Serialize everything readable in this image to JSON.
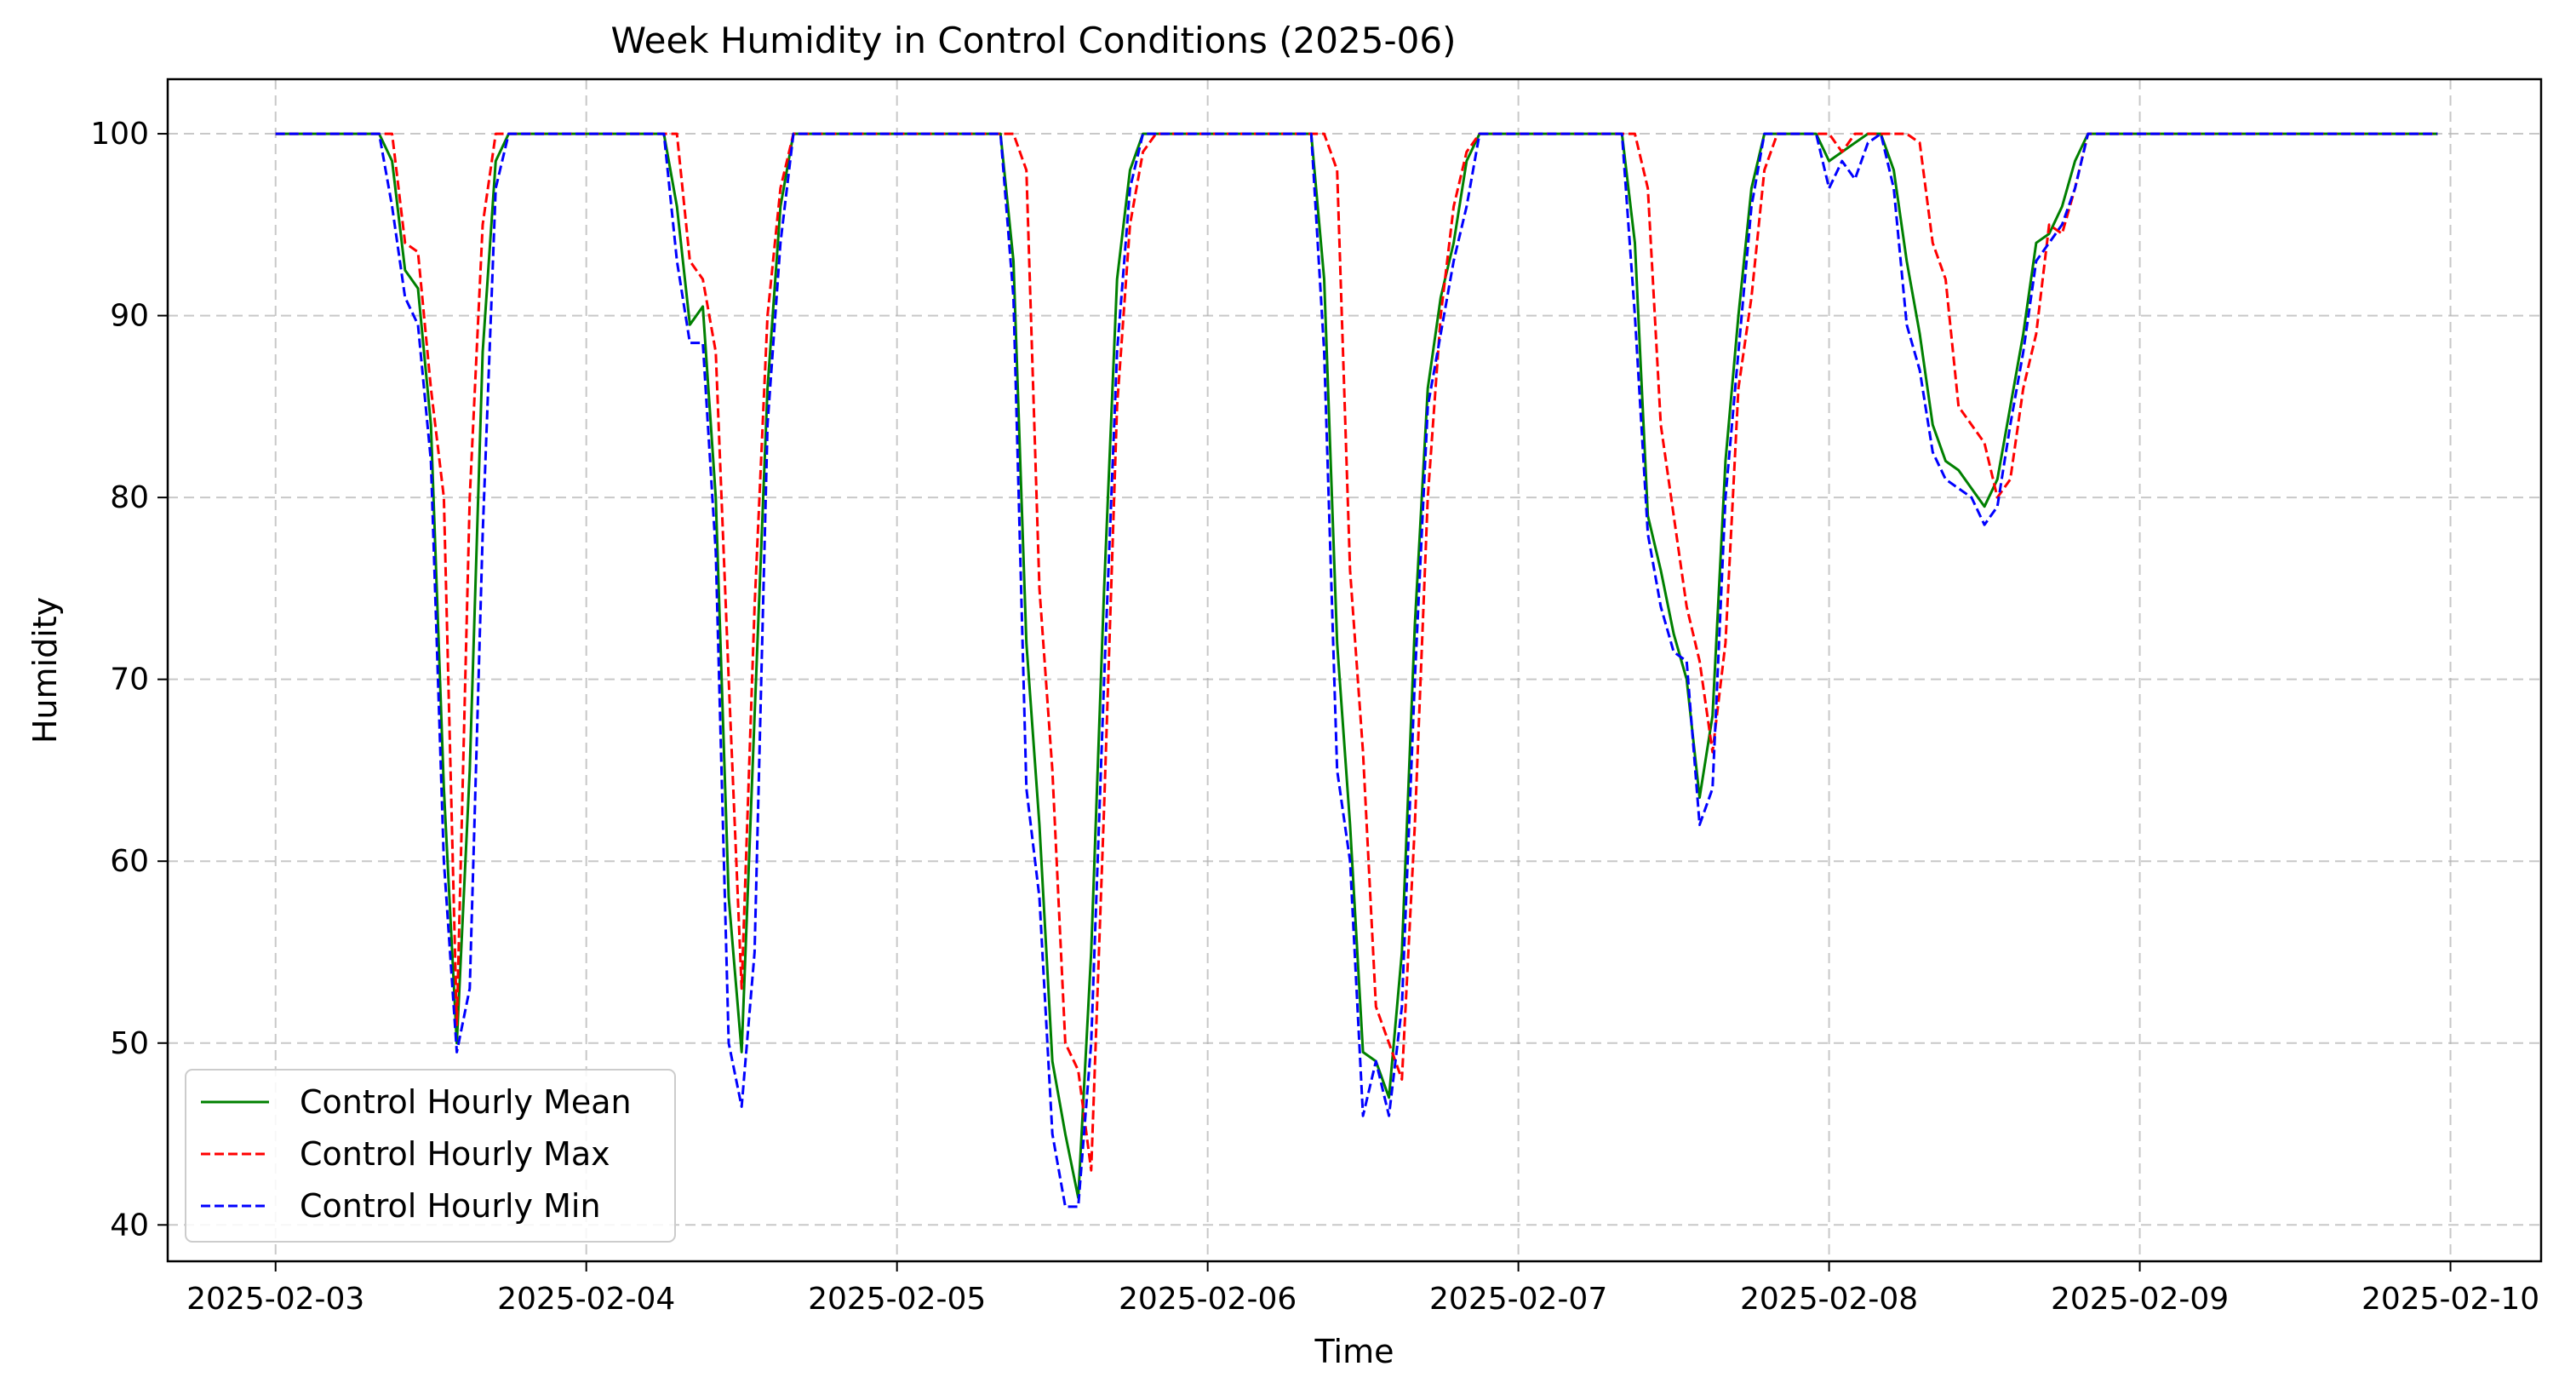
{
  "chart_data": {
    "type": "line",
    "title": "Week Humidity in Control Conditions (2025-06)",
    "xlabel": "Time",
    "ylabel": "Humidity",
    "xlim": [
      "2025-02-02 15:40",
      "2025-02-10 07:00"
    ],
    "ylim": [
      38,
      103
    ],
    "x_ticks": [
      "2025-02-03",
      "2025-02-04",
      "2025-02-05",
      "2025-02-06",
      "2025-02-07",
      "2025-02-08",
      "2025-02-09",
      "2025-02-10"
    ],
    "y_ticks": [
      40,
      50,
      60,
      70,
      80,
      90,
      100
    ],
    "grid": true,
    "legend_position": "lower left",
    "series": [
      {
        "name": "Control Hourly Mean",
        "color": "#008000",
        "style": "solid",
        "points": [
          [
            "2025-02-03 00:00",
            100
          ],
          [
            "2025-02-03 08:00",
            100
          ],
          [
            "2025-02-03 09:00",
            98.5
          ],
          [
            "2025-02-03 10:00",
            92.5
          ],
          [
            "2025-02-03 11:00",
            91.5
          ],
          [
            "2025-02-03 12:00",
            84
          ],
          [
            "2025-02-03 13:00",
            64
          ],
          [
            "2025-02-03 14:00",
            50
          ],
          [
            "2025-02-03 15:00",
            65
          ],
          [
            "2025-02-03 16:00",
            88
          ],
          [
            "2025-02-03 17:00",
            98.5
          ],
          [
            "2025-02-03 18:00",
            100
          ],
          [
            "2025-02-04 06:00",
            100
          ],
          [
            "2025-02-04 07:00",
            96
          ],
          [
            "2025-02-04 08:00",
            89.5
          ],
          [
            "2025-02-04 09:00",
            90.5
          ],
          [
            "2025-02-04 10:00",
            80
          ],
          [
            "2025-02-04 11:00",
            58
          ],
          [
            "2025-02-04 12:00",
            49.5
          ],
          [
            "2025-02-04 13:00",
            68
          ],
          [
            "2025-02-04 14:00",
            86
          ],
          [
            "2025-02-04 15:00",
            96
          ],
          [
            "2025-02-04 16:00",
            100
          ],
          [
            "2025-02-05 08:00",
            100
          ],
          [
            "2025-02-05 09:00",
            93
          ],
          [
            "2025-02-05 10:00",
            72
          ],
          [
            "2025-02-05 11:00",
            62
          ],
          [
            "2025-02-05 12:00",
            49
          ],
          [
            "2025-02-05 13:00",
            45
          ],
          [
            "2025-02-05 14:00",
            41.5
          ],
          [
            "2025-02-05 15:00",
            55
          ],
          [
            "2025-02-05 16:00",
            75
          ],
          [
            "2025-02-05 17:00",
            92
          ],
          [
            "2025-02-05 18:00",
            98
          ],
          [
            "2025-02-05 19:00",
            100
          ],
          [
            "2025-02-06 08:00",
            100
          ],
          [
            "2025-02-06 09:00",
            92
          ],
          [
            "2025-02-06 10:00",
            72
          ],
          [
            "2025-02-06 11:00",
            62
          ],
          [
            "2025-02-06 12:00",
            49.5
          ],
          [
            "2025-02-06 13:00",
            49
          ],
          [
            "2025-02-06 14:00",
            47
          ],
          [
            "2025-02-06 15:00",
            55
          ],
          [
            "2025-02-06 16:00",
            73
          ],
          [
            "2025-02-06 17:00",
            86
          ],
          [
            "2025-02-06 18:00",
            91
          ],
          [
            "2025-02-06 19:00",
            94
          ],
          [
            "2025-02-06 20:00",
            98.5
          ],
          [
            "2025-02-06 21:00",
            100
          ],
          [
            "2025-02-07 08:00",
            100
          ],
          [
            "2025-02-07 09:00",
            94
          ],
          [
            "2025-02-07 10:00",
            79
          ],
          [
            "2025-02-07 11:00",
            76
          ],
          [
            "2025-02-07 12:00",
            72.5
          ],
          [
            "2025-02-07 13:00",
            70
          ],
          [
            "2025-02-07 14:00",
            63.5
          ],
          [
            "2025-02-07 15:00",
            68
          ],
          [
            "2025-02-07 16:00",
            82
          ],
          [
            "2025-02-07 17:00",
            90
          ],
          [
            "2025-02-07 18:00",
            97
          ],
          [
            "2025-02-07 19:00",
            100
          ],
          [
            "2025-02-07 23:00",
            100
          ],
          [
            "2025-02-08 00:00",
            98.5
          ],
          [
            "2025-02-08 01:00",
            99
          ],
          [
            "2025-02-08 02:00",
            99.5
          ],
          [
            "2025-02-08 03:00",
            100
          ],
          [
            "2025-02-08 04:00",
            100
          ],
          [
            "2025-02-08 05:00",
            98
          ],
          [
            "2025-02-08 06:00",
            93
          ],
          [
            "2025-02-08 07:00",
            89
          ],
          [
            "2025-02-08 08:00",
            84
          ],
          [
            "2025-02-08 09:00",
            82
          ],
          [
            "2025-02-08 10:00",
            81.5
          ],
          [
            "2025-02-08 11:00",
            80.5
          ],
          [
            "2025-02-08 12:00",
            79.5
          ],
          [
            "2025-02-08 13:00",
            81
          ],
          [
            "2025-02-08 14:00",
            85
          ],
          [
            "2025-02-08 15:00",
            89
          ],
          [
            "2025-02-08 16:00",
            94
          ],
          [
            "2025-02-08 17:00",
            94.5
          ],
          [
            "2025-02-08 18:00",
            96
          ],
          [
            "2025-02-08 19:00",
            98.5
          ],
          [
            "2025-02-08 20:00",
            100
          ],
          [
            "2025-02-09 23:00",
            100
          ]
        ]
      },
      {
        "name": "Control Hourly Max",
        "color": "#ff0000",
        "style": "dashed",
        "points": [
          [
            "2025-02-03 00:00",
            100
          ],
          [
            "2025-02-03 09:00",
            100
          ],
          [
            "2025-02-03 10:00",
            94
          ],
          [
            "2025-02-03 11:00",
            93.5
          ],
          [
            "2025-02-03 12:00",
            86
          ],
          [
            "2025-02-03 13:00",
            80
          ],
          [
            "2025-02-03 14:00",
            51
          ],
          [
            "2025-02-03 15:00",
            80
          ],
          [
            "2025-02-03 16:00",
            95
          ],
          [
            "2025-02-03 17:00",
            100
          ],
          [
            "2025-02-04 07:00",
            100
          ],
          [
            "2025-02-04 08:00",
            93
          ],
          [
            "2025-02-04 09:00",
            92
          ],
          [
            "2025-02-04 10:00",
            88
          ],
          [
            "2025-02-04 11:00",
            70
          ],
          [
            "2025-02-04 12:00",
            53
          ],
          [
            "2025-02-04 13:00",
            74
          ],
          [
            "2025-02-04 14:00",
            90
          ],
          [
            "2025-02-04 15:00",
            97
          ],
          [
            "2025-02-04 16:00",
            100
          ],
          [
            "2025-02-05 09:00",
            100
          ],
          [
            "2025-02-05 10:00",
            98
          ],
          [
            "2025-02-05 11:00",
            75
          ],
          [
            "2025-02-05 12:00",
            65
          ],
          [
            "2025-02-05 13:00",
            50
          ],
          [
            "2025-02-05 14:00",
            48.5
          ],
          [
            "2025-02-05 15:00",
            43
          ],
          [
            "2025-02-05 16:00",
            63
          ],
          [
            "2025-02-05 17:00",
            85
          ],
          [
            "2025-02-05 18:00",
            95
          ],
          [
            "2025-02-05 19:00",
            99
          ],
          [
            "2025-02-05 20:00",
            100
          ],
          [
            "2025-02-06 09:00",
            100
          ],
          [
            "2025-02-06 10:00",
            98
          ],
          [
            "2025-02-06 11:00",
            76
          ],
          [
            "2025-02-06 12:00",
            66
          ],
          [
            "2025-02-06 13:00",
            52
          ],
          [
            "2025-02-06 14:00",
            50
          ],
          [
            "2025-02-06 15:00",
            48
          ],
          [
            "2025-02-06 16:00",
            62
          ],
          [
            "2025-02-06 17:00",
            80
          ],
          [
            "2025-02-06 18:00",
            90
          ],
          [
            "2025-02-06 19:00",
            96
          ],
          [
            "2025-02-06 20:00",
            99
          ],
          [
            "2025-02-06 21:00",
            100
          ],
          [
            "2025-02-07 09:00",
            100
          ],
          [
            "2025-02-07 10:00",
            97
          ],
          [
            "2025-02-07 11:00",
            84
          ],
          [
            "2025-02-07 12:00",
            79
          ],
          [
            "2025-02-07 13:00",
            74
          ],
          [
            "2025-02-07 14:00",
            71
          ],
          [
            "2025-02-07 15:00",
            66
          ],
          [
            "2025-02-07 16:00",
            72
          ],
          [
            "2025-02-07 17:00",
            86
          ],
          [
            "2025-02-07 18:00",
            91
          ],
          [
            "2025-02-07 19:00",
            98
          ],
          [
            "2025-02-07 20:00",
            100
          ],
          [
            "2025-02-08 00:00",
            100
          ],
          [
            "2025-02-08 01:00",
            99
          ],
          [
            "2025-02-08 02:00",
            100
          ],
          [
            "2025-02-08 06:00",
            100
          ],
          [
            "2025-02-08 07:00",
            99.5
          ],
          [
            "2025-02-08 08:00",
            94
          ],
          [
            "2025-02-08 09:00",
            92
          ],
          [
            "2025-02-08 10:00",
            85
          ],
          [
            "2025-02-08 11:00",
            84
          ],
          [
            "2025-02-08 12:00",
            83
          ],
          [
            "2025-02-08 13:00",
            80
          ],
          [
            "2025-02-08 14:00",
            81
          ],
          [
            "2025-02-08 15:00",
            86
          ],
          [
            "2025-02-08 16:00",
            89
          ],
          [
            "2025-02-08 17:00",
            95
          ],
          [
            "2025-02-08 18:00",
            94.5
          ],
          [
            "2025-02-08 19:00",
            97
          ],
          [
            "2025-02-08 20:00",
            100
          ],
          [
            "2025-02-09 23:00",
            100
          ]
        ]
      },
      {
        "name": "Control Hourly Min",
        "color": "#0000ff",
        "style": "dashed",
        "points": [
          [
            "2025-02-03 00:00",
            100
          ],
          [
            "2025-02-03 08:00",
            100
          ],
          [
            "2025-02-03 09:00",
            96
          ],
          [
            "2025-02-03 10:00",
            91
          ],
          [
            "2025-02-03 11:00",
            89.5
          ],
          [
            "2025-02-03 12:00",
            82
          ],
          [
            "2025-02-03 13:00",
            60
          ],
          [
            "2025-02-03 14:00",
            49.5
          ],
          [
            "2025-02-03 15:00",
            53
          ],
          [
            "2025-02-03 16:00",
            78
          ],
          [
            "2025-02-03 17:00",
            97
          ],
          [
            "2025-02-03 18:00",
            100
          ],
          [
            "2025-02-04 06:00",
            100
          ],
          [
            "2025-02-04 07:00",
            93
          ],
          [
            "2025-02-04 08:00",
            88.5
          ],
          [
            "2025-02-04 09:00",
            88.5
          ],
          [
            "2025-02-04 10:00",
            77
          ],
          [
            "2025-02-04 11:00",
            50
          ],
          [
            "2025-02-04 12:00",
            46.5
          ],
          [
            "2025-02-04 13:00",
            55
          ],
          [
            "2025-02-04 14:00",
            84
          ],
          [
            "2025-02-04 15:00",
            94
          ],
          [
            "2025-02-04 16:00",
            100
          ],
          [
            "2025-02-05 08:00",
            100
          ],
          [
            "2025-02-05 09:00",
            91
          ],
          [
            "2025-02-05 10:00",
            64
          ],
          [
            "2025-02-05 11:00",
            58
          ],
          [
            "2025-02-05 12:00",
            45
          ],
          [
            "2025-02-05 13:00",
            41
          ],
          [
            "2025-02-05 14:00",
            41
          ],
          [
            "2025-02-05 15:00",
            50
          ],
          [
            "2025-02-05 16:00",
            70
          ],
          [
            "2025-02-05 17:00",
            88
          ],
          [
            "2025-02-05 18:00",
            97
          ],
          [
            "2025-02-05 19:00",
            100
          ],
          [
            "2025-02-06 08:00",
            100
          ],
          [
            "2025-02-06 09:00",
            88
          ],
          [
            "2025-02-06 10:00",
            65
          ],
          [
            "2025-02-06 11:00",
            60
          ],
          [
            "2025-02-06 12:00",
            46
          ],
          [
            "2025-02-06 13:00",
            49
          ],
          [
            "2025-02-06 14:00",
            46
          ],
          [
            "2025-02-06 15:00",
            52
          ],
          [
            "2025-02-06 16:00",
            70
          ],
          [
            "2025-02-06 17:00",
            85
          ],
          [
            "2025-02-06 18:00",
            89
          ],
          [
            "2025-02-06 19:00",
            93
          ],
          [
            "2025-02-06 20:00",
            96
          ],
          [
            "2025-02-06 21:00",
            100
          ],
          [
            "2025-02-07 08:00",
            100
          ],
          [
            "2025-02-07 09:00",
            90
          ],
          [
            "2025-02-07 10:00",
            78
          ],
          [
            "2025-02-07 11:00",
            74
          ],
          [
            "2025-02-07 12:00",
            71.5
          ],
          [
            "2025-02-07 13:00",
            71
          ],
          [
            "2025-02-07 14:00",
            62
          ],
          [
            "2025-02-07 15:00",
            64
          ],
          [
            "2025-02-07 16:00",
            80
          ],
          [
            "2025-02-07 17:00",
            88
          ],
          [
            "2025-02-07 18:00",
            96
          ],
          [
            "2025-02-07 19:00",
            100
          ],
          [
            "2025-02-07 23:00",
            100
          ],
          [
            "2025-02-08 00:00",
            97
          ],
          [
            "2025-02-08 01:00",
            98.5
          ],
          [
            "2025-02-08 02:00",
            97.5
          ],
          [
            "2025-02-08 03:00",
            99.5
          ],
          [
            "2025-02-08 04:00",
            100
          ],
          [
            "2025-02-08 05:00",
            97
          ],
          [
            "2025-02-08 06:00",
            89.5
          ],
          [
            "2025-02-08 07:00",
            87
          ],
          [
            "2025-02-08 08:00",
            82.5
          ],
          [
            "2025-02-08 09:00",
            81
          ],
          [
            "2025-02-08 10:00",
            80.5
          ],
          [
            "2025-02-08 11:00",
            80
          ],
          [
            "2025-02-08 12:00",
            78.5
          ],
          [
            "2025-02-08 13:00",
            79.5
          ],
          [
            "2025-02-08 14:00",
            84
          ],
          [
            "2025-02-08 15:00",
            88
          ],
          [
            "2025-02-08 16:00",
            93
          ],
          [
            "2025-02-08 17:00",
            94
          ],
          [
            "2025-02-08 18:00",
            95
          ],
          [
            "2025-02-08 19:00",
            97
          ],
          [
            "2025-02-08 20:00",
            100
          ],
          [
            "2025-02-09 23:00",
            100
          ]
        ]
      }
    ]
  }
}
